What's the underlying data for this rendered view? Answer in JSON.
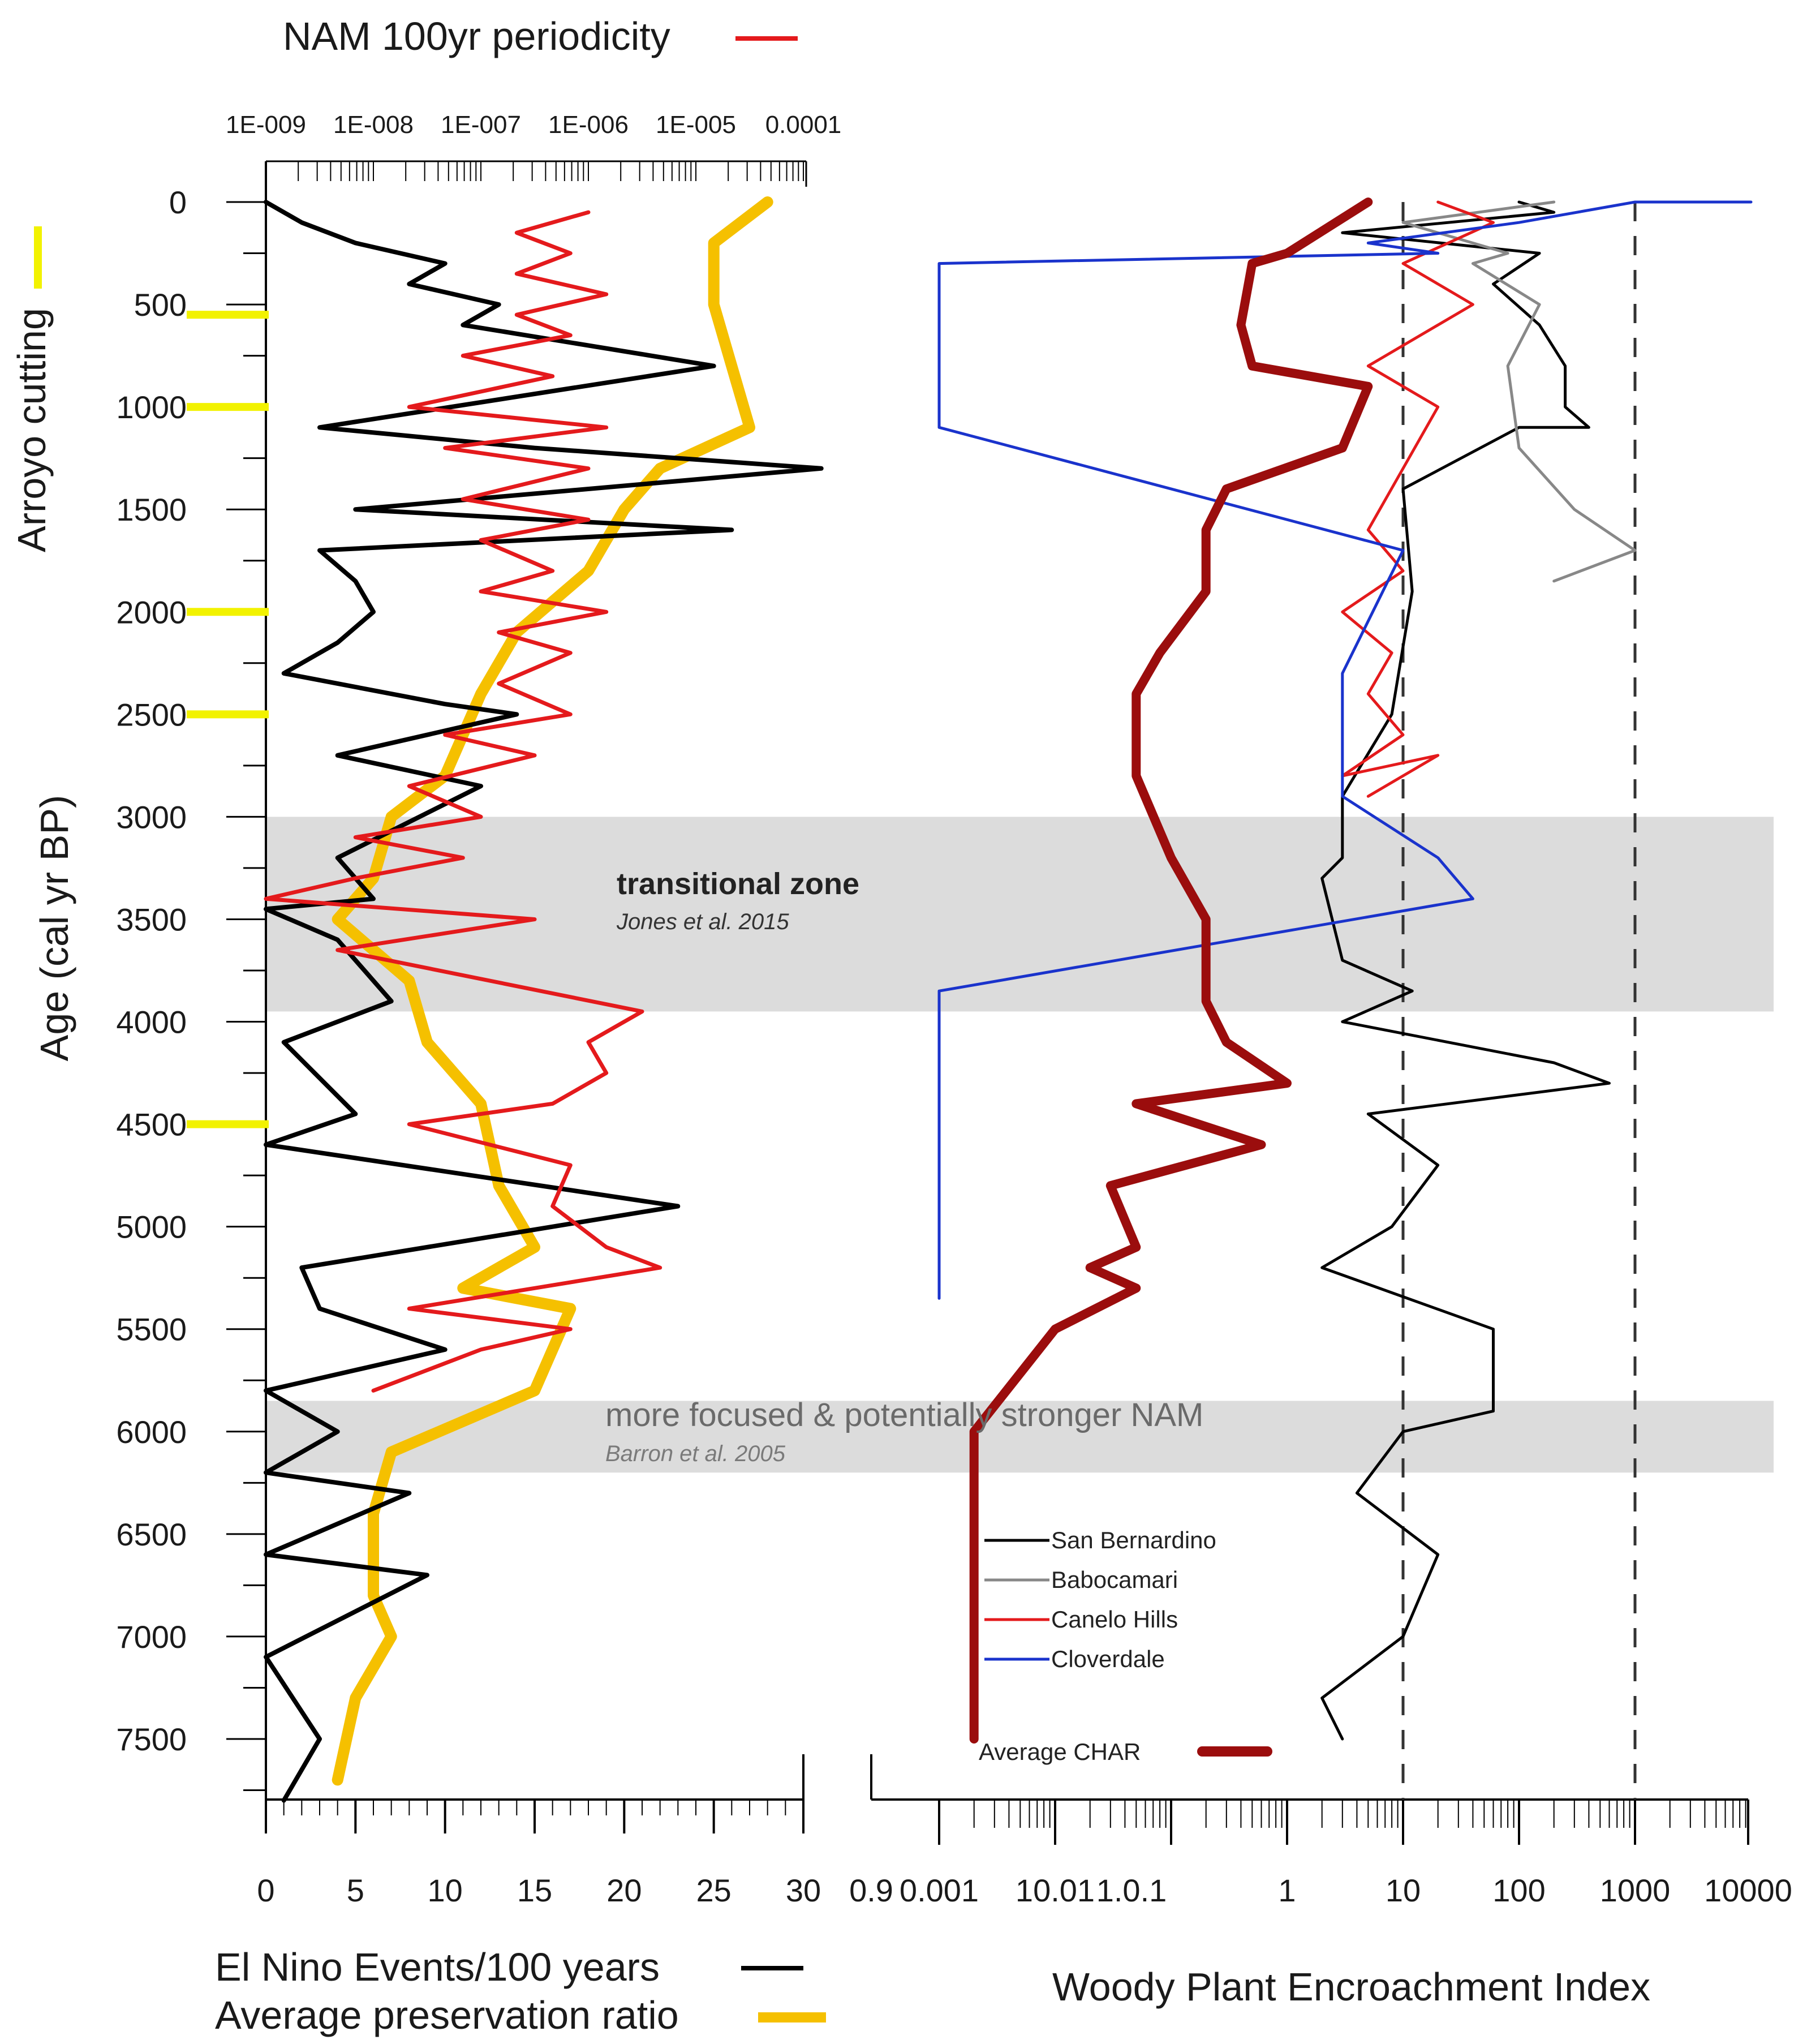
{
  "chart_data": {
    "type": "line",
    "shared_y": {
      "label": "Age (cal yr BP)",
      "ticks": [
        0,
        500,
        1000,
        1500,
        2000,
        2500,
        3000,
        3500,
        4000,
        4500,
        5000,
        5500,
        6000,
        6500,
        7000,
        7500
      ],
      "range": [
        0,
        7800
      ],
      "reversed": true
    },
    "side_label": "Arroyo cutting",
    "arroyo_cutting_ages": [
      150,
      550,
      1000,
      2000,
      2500,
      4500
    ],
    "zones": [
      {
        "label": "transitional zone",
        "ref": "Jones et al. 2015",
        "range": [
          3000,
          3950
        ]
      },
      {
        "label": "more focused & potentially stronger NAM",
        "ref": "Barron et al. 2005",
        "range": [
          5850,
          6200
        ]
      }
    ],
    "left_panel": {
      "top_title": "NAM 100yr periodicity",
      "top_axis_labels": [
        "1E-009",
        "1E-008",
        "1E-007",
        "1E-006",
        "1E-005",
        "0.0001"
      ],
      "bottom_axis": {
        "ticks": [
          0,
          5,
          10,
          15,
          20,
          25,
          30
        ],
        "range": [
          0,
          30
        ]
      },
      "legend_lines": [
        "El Nino Events/100 years",
        "Average preservation ratio"
      ],
      "series": [
        {
          "name": "El Nino Events/100 years",
          "color": "#000000",
          "points": [
            [
              0,
              0
            ],
            [
              2,
              100
            ],
            [
              5,
              200
            ],
            [
              10,
              300
            ],
            [
              8,
              400
            ],
            [
              13,
              500
            ],
            [
              11,
              600
            ],
            [
              25,
              800
            ],
            [
              3,
              1100
            ],
            [
              15,
              1200
            ],
            [
              31,
              1300
            ],
            [
              5,
              1500
            ],
            [
              26,
              1600
            ],
            [
              3,
              1700
            ],
            [
              5,
              1850
            ],
            [
              6,
              2000
            ],
            [
              4,
              2150
            ],
            [
              1,
              2300
            ],
            [
              10,
              2450
            ],
            [
              14,
              2500
            ],
            [
              4,
              2700
            ],
            [
              12,
              2850
            ],
            [
              4,
              3200
            ],
            [
              6,
              3400
            ],
            [
              0,
              3450
            ],
            [
              4,
              3600
            ],
            [
              7,
              3900
            ],
            [
              1,
              4100
            ],
            [
              5,
              4450
            ],
            [
              0,
              4600
            ],
            [
              23,
              4900
            ],
            [
              2,
              5200
            ],
            [
              3,
              5400
            ],
            [
              10,
              5600
            ],
            [
              0,
              5800
            ],
            [
              4,
              6000
            ],
            [
              0,
              6200
            ],
            [
              8,
              6300
            ],
            [
              0,
              6600
            ],
            [
              9,
              6700
            ],
            [
              0,
              7100
            ],
            [
              3,
              7500
            ],
            [
              1,
              7800
            ]
          ]
        },
        {
          "name": "Average preservation ratio",
          "color": "#f5c000",
          "points": [
            [
              28,
              0
            ],
            [
              25,
              200
            ],
            [
              25,
              500
            ],
            [
              26,
              800
            ],
            [
              27,
              1100
            ],
            [
              22,
              1300
            ],
            [
              20,
              1500
            ],
            [
              18,
              1800
            ],
            [
              14,
              2100
            ],
            [
              12,
              2400
            ],
            [
              10,
              2800
            ],
            [
              7,
              3000
            ],
            [
              6,
              3300
            ],
            [
              4,
              3500
            ],
            [
              8,
              3800
            ],
            [
              9,
              4100
            ],
            [
              12,
              4400
            ],
            [
              13,
              4800
            ],
            [
              15,
              5100
            ],
            [
              11,
              5300
            ],
            [
              17,
              5400
            ],
            [
              15,
              5800
            ],
            [
              7,
              6100
            ],
            [
              6,
              6400
            ],
            [
              6,
              6800
            ],
            [
              7,
              7000
            ],
            [
              5,
              7300
            ],
            [
              4,
              7700
            ]
          ]
        },
        {
          "name": "NAM 100yr periodicity",
          "color": "#e41a1c",
          "points": [
            [
              18,
              50
            ],
            [
              14,
              150
            ],
            [
              17,
              250
            ],
            [
              14,
              350
            ],
            [
              19,
              450
            ],
            [
              14,
              550
            ],
            [
              17,
              650
            ],
            [
              11,
              750
            ],
            [
              16,
              850
            ],
            [
              8,
              1000
            ],
            [
              19,
              1100
            ],
            [
              10,
              1200
            ],
            [
              18,
              1300
            ],
            [
              11,
              1450
            ],
            [
              18,
              1550
            ],
            [
              12,
              1650
            ],
            [
              16,
              1800
            ],
            [
              12,
              1900
            ],
            [
              19,
              2000
            ],
            [
              13,
              2100
            ],
            [
              17,
              2200
            ],
            [
              13,
              2350
            ],
            [
              17,
              2500
            ],
            [
              10,
              2600
            ],
            [
              15,
              2700
            ],
            [
              8,
              2850
            ],
            [
              12,
              3000
            ],
            [
              5,
              3100
            ],
            [
              11,
              3200
            ],
            [
              5,
              3300
            ],
            [
              0,
              3400
            ],
            [
              15,
              3500
            ],
            [
              4,
              3650
            ],
            [
              21,
              3950
            ],
            [
              18,
              4100
            ],
            [
              19,
              4250
            ],
            [
              16,
              4400
            ],
            [
              8,
              4500
            ],
            [
              17,
              4700
            ],
            [
              16,
              4900
            ],
            [
              19,
              5100
            ],
            [
              22,
              5200
            ],
            [
              15,
              5300
            ],
            [
              8,
              5400
            ],
            [
              17,
              5500
            ],
            [
              12,
              5600
            ],
            [
              6,
              5800
            ]
          ]
        }
      ]
    },
    "right_panel": {
      "bottom_axis": {
        "label": "Woody Plant Encroachment Index",
        "scale": "log",
        "tick_labels": [
          "0.9",
          "0.001",
          "10.01",
          "1.0.1",
          "1",
          "10",
          "100",
          "1000",
          "10000"
        ]
      },
      "reference_lines": [
        10,
        1000
      ],
      "series": [
        {
          "name": "San Bernardino",
          "color": "#000000",
          "points": [
            [
              100,
              0
            ],
            [
              200,
              50
            ],
            [
              3,
              150
            ],
            [
              150,
              250
            ],
            [
              60,
              400
            ],
            [
              150,
              600
            ],
            [
              250,
              800
            ],
            [
              250,
              1000
            ],
            [
              400,
              1100
            ],
            [
              100,
              1100
            ],
            [
              10,
              1400
            ],
            [
              12,
              1900
            ],
            [
              8,
              2500
            ],
            [
              3,
              2900
            ],
            [
              3,
              3200
            ],
            [
              2,
              3300
            ],
            [
              3,
              3700
            ],
            [
              12,
              3850
            ],
            [
              3,
              4000
            ],
            [
              200,
              4200
            ],
            [
              600,
              4300
            ],
            [
              5,
              4450
            ],
            [
              20,
              4700
            ],
            [
              8,
              5000
            ],
            [
              2,
              5200
            ],
            [
              60,
              5500
            ],
            [
              60,
              5900
            ],
            [
              10,
              6000
            ],
            [
              4,
              6300
            ],
            [
              20,
              6600
            ],
            [
              10,
              7000
            ],
            [
              2,
              7300
            ],
            [
              3,
              7500
            ]
          ]
        },
        {
          "name": "Babocamari",
          "color": "#888888",
          "points": [
            [
              200,
              0
            ],
            [
              10,
              100
            ],
            [
              80,
              250
            ],
            [
              40,
              300
            ],
            [
              150,
              500
            ],
            [
              80,
              800
            ],
            [
              100,
              1200
            ],
            [
              300,
              1500
            ],
            [
              1000,
              1700
            ],
            [
              200,
              1850
            ]
          ]
        },
        {
          "name": "Canelo Hills",
          "color": "#e41a1c",
          "points": [
            [
              20,
              0
            ],
            [
              60,
              100
            ],
            [
              10,
              300
            ],
            [
              40,
              500
            ],
            [
              5,
              800
            ],
            [
              20,
              1000
            ],
            [
              10,
              1300
            ],
            [
              5,
              1600
            ],
            [
              10,
              1800
            ],
            [
              3,
              2000
            ],
            [
              8,
              2200
            ],
            [
              5,
              2400
            ],
            [
              10,
              2600
            ],
            [
              3,
              2800
            ],
            [
              20,
              2700
            ],
            [
              5,
              2900
            ]
          ]
        },
        {
          "name": "Cloverdale",
          "color": "#1a33cc",
          "points": [
            [
              10000,
              0
            ],
            [
              1000,
              0
            ],
            [
              100,
              100
            ],
            [
              5,
              200
            ],
            [
              20,
              250
            ],
            [
              0.001,
              300
            ],
            [
              0.001,
              1100
            ],
            [
              10,
              1700
            ],
            [
              3,
              2300
            ],
            [
              3,
              2900
            ],
            [
              20,
              3200
            ],
            [
              40,
              3400
            ],
            [
              0.001,
              3850
            ],
            [
              0.001,
              5350
            ]
          ]
        },
        {
          "name": "Average CHAR",
          "color": "#9b0d0d",
          "points": [
            [
              5,
              0
            ],
            [
              1,
              250
            ],
            [
              0.5,
              300
            ],
            [
              0.4,
              600
            ],
            [
              0.5,
              800
            ],
            [
              5,
              900
            ],
            [
              3,
              1200
            ],
            [
              0.3,
              1400
            ],
            [
              0.2,
              1600
            ],
            [
              0.2,
              1900
            ],
            [
              0.08,
              2200
            ],
            [
              0.05,
              2400
            ],
            [
              0.05,
              2800
            ],
            [
              0.1,
              3200
            ],
            [
              0.2,
              3500
            ],
            [
              0.2,
              3900
            ],
            [
              0.3,
              4100
            ],
            [
              1,
              4300
            ],
            [
              0.05,
              4400
            ],
            [
              0.6,
              4600
            ],
            [
              0.03,
              4800
            ],
            [
              0.05,
              5100
            ],
            [
              0.02,
              5200
            ],
            [
              0.05,
              5300
            ],
            [
              0.01,
              5500
            ],
            [
              0.002,
              6000
            ],
            [
              0.002,
              7500
            ]
          ]
        }
      ],
      "legend": [
        "San Bernardino",
        "Babocamari",
        "Canelo Hills",
        "Cloverdale",
        "Average CHAR"
      ]
    }
  }
}
